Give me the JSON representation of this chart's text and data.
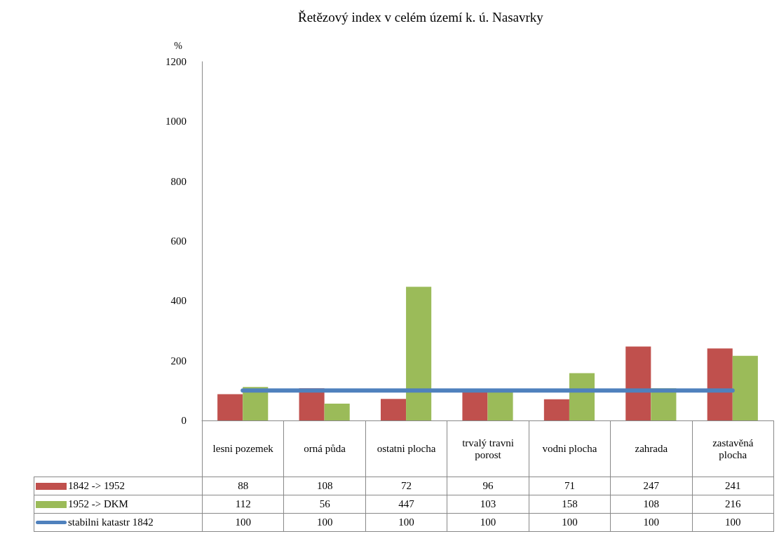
{
  "chart_data": {
    "type": "bar",
    "title": "Řetězový index v celém území k. ú. Nasavrky",
    "ylabel": "%",
    "categories": [
      "lesni pozemek",
      "orná půda",
      "ostatni plocha",
      "trvalý travni porost",
      "vodni plocha",
      "zahrada",
      "zastavěná plocha"
    ],
    "series": [
      {
        "name": "1842 -> 1952",
        "color": "#c0504d",
        "values": [
          88,
          108,
          72,
          96,
          71,
          247,
          241
        ]
      },
      {
        "name": "1952 -> DKM",
        "color": "#9bbb59",
        "values": [
          112,
          56,
          447,
          103,
          158,
          108,
          216
        ]
      },
      {
        "name": "stabilni katastr 1842",
        "type": "line",
        "color": "#4f81bd",
        "values": [
          100,
          100,
          100,
          100,
          100,
          100,
          100
        ]
      }
    ],
    "ylim": [
      0,
      1200
    ],
    "yticks": [
      0,
      200,
      400,
      600,
      800,
      1000,
      1200
    ],
    "grid": false,
    "legend": "bottom left",
    "marker": "none",
    "data_labels": true
  }
}
